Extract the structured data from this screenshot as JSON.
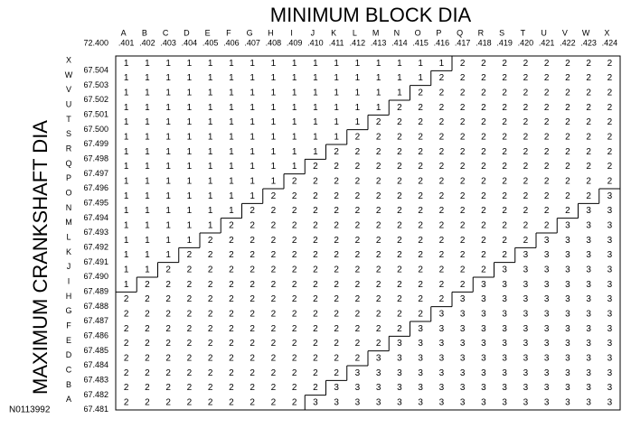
{
  "header": {
    "title": "MINIMUM BLOCK DIA",
    "side_title": "MAXIMUM CRANKSHAFT DIA",
    "corner_value": "72.400",
    "figure_id": "N0113992"
  },
  "columns": [
    {
      "letter": "A",
      "value": ".401"
    },
    {
      "letter": "B",
      "value": ".402"
    },
    {
      "letter": "C",
      "value": ".403"
    },
    {
      "letter": "D",
      "value": ".404"
    },
    {
      "letter": "E",
      "value": ".405"
    },
    {
      "letter": "F",
      "value": ".406"
    },
    {
      "letter": "G",
      "value": ".407"
    },
    {
      "letter": "H",
      "value": ".408"
    },
    {
      "letter": "I",
      "value": ".409"
    },
    {
      "letter": "J",
      "value": ".410"
    },
    {
      "letter": "K",
      "value": ".411"
    },
    {
      "letter": "L",
      "value": ".412"
    },
    {
      "letter": "M",
      "value": ".413"
    },
    {
      "letter": "N",
      "value": ".414"
    },
    {
      "letter": "O",
      "value": ".415"
    },
    {
      "letter": "P",
      "value": ".416"
    },
    {
      "letter": "Q",
      "value": ".417"
    },
    {
      "letter": "R",
      "value": ".418"
    },
    {
      "letter": "S",
      "value": ".419"
    },
    {
      "letter": "T",
      "value": ".420"
    },
    {
      "letter": "U",
      "value": ".421"
    },
    {
      "letter": "V",
      "value": ".422"
    },
    {
      "letter": "W",
      "value": ".423"
    },
    {
      "letter": "X",
      "value": ".424"
    }
  ],
  "rows": [
    {
      "letter": "X",
      "value": "67.504",
      "cells": [
        1,
        1,
        1,
        1,
        1,
        1,
        1,
        1,
        1,
        1,
        1,
        1,
        1,
        1,
        1,
        1,
        2,
        2,
        2,
        2,
        2,
        2,
        2,
        2
      ]
    },
    {
      "letter": "W",
      "value": "67.503",
      "cells": [
        1,
        1,
        1,
        1,
        1,
        1,
        1,
        1,
        1,
        1,
        1,
        1,
        1,
        1,
        1,
        2,
        2,
        2,
        2,
        2,
        2,
        2,
        2,
        2
      ]
    },
    {
      "letter": "V",
      "value": "67.502",
      "cells": [
        1,
        1,
        1,
        1,
        1,
        1,
        1,
        1,
        1,
        1,
        1,
        1,
        1,
        1,
        2,
        2,
        2,
        2,
        2,
        2,
        2,
        2,
        2,
        2
      ]
    },
    {
      "letter": "U",
      "value": "67.501",
      "cells": [
        1,
        1,
        1,
        1,
        1,
        1,
        1,
        1,
        1,
        1,
        1,
        1,
        1,
        2,
        2,
        2,
        2,
        2,
        2,
        2,
        2,
        2,
        2,
        2
      ]
    },
    {
      "letter": "T",
      "value": "67.500",
      "cells": [
        1,
        1,
        1,
        1,
        1,
        1,
        1,
        1,
        1,
        1,
        1,
        1,
        2,
        2,
        2,
        2,
        2,
        2,
        2,
        2,
        2,
        2,
        2,
        2
      ]
    },
    {
      "letter": "S",
      "value": "67.499",
      "cells": [
        1,
        1,
        1,
        1,
        1,
        1,
        1,
        1,
        1,
        1,
        1,
        2,
        2,
        2,
        2,
        2,
        2,
        2,
        2,
        2,
        2,
        2,
        2,
        2
      ]
    },
    {
      "letter": "R",
      "value": "67.498",
      "cells": [
        1,
        1,
        1,
        1,
        1,
        1,
        1,
        1,
        1,
        1,
        2,
        2,
        2,
        2,
        2,
        2,
        2,
        2,
        2,
        2,
        2,
        2,
        2,
        2
      ]
    },
    {
      "letter": "Q",
      "value": "67.497",
      "cells": [
        1,
        1,
        1,
        1,
        1,
        1,
        1,
        1,
        1,
        2,
        2,
        2,
        2,
        2,
        2,
        2,
        2,
        2,
        2,
        2,
        2,
        2,
        2,
        2
      ]
    },
    {
      "letter": "P",
      "value": "67.496",
      "cells": [
        1,
        1,
        1,
        1,
        1,
        1,
        1,
        1,
        2,
        2,
        2,
        2,
        2,
        2,
        2,
        2,
        2,
        2,
        2,
        2,
        2,
        2,
        2,
        2
      ]
    },
    {
      "letter": "O",
      "value": "67.495",
      "cells": [
        1,
        1,
        1,
        1,
        1,
        1,
        1,
        2,
        2,
        2,
        2,
        2,
        2,
        2,
        2,
        2,
        2,
        2,
        2,
        2,
        2,
        2,
        2,
        3
      ]
    },
    {
      "letter": "N",
      "value": "67.494",
      "cells": [
        1,
        1,
        1,
        1,
        1,
        1,
        2,
        2,
        2,
        2,
        2,
        2,
        2,
        2,
        2,
        2,
        2,
        2,
        2,
        2,
        2,
        2,
        3,
        3
      ]
    },
    {
      "letter": "M",
      "value": "67.493",
      "cells": [
        1,
        1,
        1,
        1,
        1,
        2,
        2,
        2,
        2,
        2,
        2,
        2,
        2,
        2,
        2,
        2,
        2,
        2,
        2,
        2,
        2,
        3,
        3,
        3
      ]
    },
    {
      "letter": "L",
      "value": "67.492",
      "cells": [
        1,
        1,
        1,
        1,
        2,
        2,
        2,
        2,
        2,
        2,
        2,
        2,
        2,
        2,
        2,
        2,
        2,
        2,
        2,
        2,
        3,
        3,
        3,
        3
      ]
    },
    {
      "letter": "K",
      "value": "67.491",
      "cells": [
        1,
        1,
        1,
        2,
        2,
        2,
        2,
        2,
        2,
        2,
        2,
        2,
        2,
        2,
        2,
        2,
        2,
        2,
        2,
        3,
        3,
        3,
        3,
        3
      ]
    },
    {
      "letter": "J",
      "value": "67.490",
      "cells": [
        1,
        1,
        2,
        2,
        2,
        2,
        2,
        2,
        2,
        2,
        2,
        2,
        2,
        2,
        2,
        2,
        2,
        2,
        3,
        3,
        3,
        3,
        3,
        3
      ]
    },
    {
      "letter": "I",
      "value": "67.489",
      "cells": [
        1,
        2,
        2,
        2,
        2,
        2,
        2,
        2,
        2,
        2,
        2,
        2,
        2,
        2,
        2,
        2,
        2,
        3,
        3,
        3,
        3,
        3,
        3,
        3
      ]
    },
    {
      "letter": "H",
      "value": "67.488",
      "cells": [
        2,
        2,
        2,
        2,
        2,
        2,
        2,
        2,
        2,
        2,
        2,
        2,
        2,
        2,
        2,
        2,
        3,
        3,
        3,
        3,
        3,
        3,
        3,
        3
      ]
    },
    {
      "letter": "G",
      "value": "67.487",
      "cells": [
        2,
        2,
        2,
        2,
        2,
        2,
        2,
        2,
        2,
        2,
        2,
        2,
        2,
        2,
        2,
        3,
        3,
        3,
        3,
        3,
        3,
        3,
        3,
        3
      ]
    },
    {
      "letter": "F",
      "value": "67.486",
      "cells": [
        2,
        2,
        2,
        2,
        2,
        2,
        2,
        2,
        2,
        2,
        2,
        2,
        2,
        2,
        3,
        3,
        3,
        3,
        3,
        3,
        3,
        3,
        3,
        3
      ]
    },
    {
      "letter": "E",
      "value": "67.485",
      "cells": [
        2,
        2,
        2,
        2,
        2,
        2,
        2,
        2,
        2,
        2,
        2,
        2,
        2,
        3,
        3,
        3,
        3,
        3,
        3,
        3,
        3,
        3,
        3,
        3
      ]
    },
    {
      "letter": "D",
      "value": "67.484",
      "cells": [
        2,
        2,
        2,
        2,
        2,
        2,
        2,
        2,
        2,
        2,
        2,
        2,
        3,
        3,
        3,
        3,
        3,
        3,
        3,
        3,
        3,
        3,
        3,
        3
      ]
    },
    {
      "letter": "C",
      "value": "67.483",
      "cells": [
        2,
        2,
        2,
        2,
        2,
        2,
        2,
        2,
        2,
        2,
        2,
        3,
        3,
        3,
        3,
        3,
        3,
        3,
        3,
        3,
        3,
        3,
        3,
        3
      ]
    },
    {
      "letter": "B",
      "value": "67.482",
      "cells": [
        2,
        2,
        2,
        2,
        2,
        2,
        2,
        2,
        2,
        2,
        3,
        3,
        3,
        3,
        3,
        3,
        3,
        3,
        3,
        3,
        3,
        3,
        3,
        3
      ]
    },
    {
      "letter": "A",
      "value": "67.481",
      "cells": [
        2,
        2,
        2,
        2,
        2,
        2,
        2,
        2,
        2,
        3,
        3,
        3,
        3,
        3,
        3,
        3,
        3,
        3,
        3,
        3,
        3,
        3,
        3,
        3
      ]
    }
  ]
}
